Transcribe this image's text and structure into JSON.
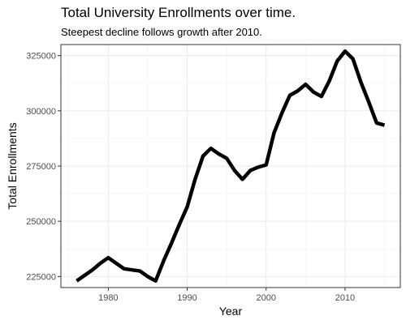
{
  "chart_data": {
    "type": "line",
    "title": "Total University Enrollments over time.",
    "subtitle": "Steepest decline follows growth after 2010.",
    "xlabel": "Year",
    "ylabel": "Total Enrollments",
    "xlim": [
      1974,
      2017
    ],
    "ylim": [
      220000,
      330000
    ],
    "x_ticks": [
      1980,
      1990,
      2000,
      2010
    ],
    "y_ticks": [
      225000,
      250000,
      275000,
      300000,
      325000
    ],
    "x_tick_labels": [
      "1980",
      "1990",
      "2000",
      "2010"
    ],
    "y_tick_labels": [
      "225000",
      "250000",
      "275000",
      "300000",
      "325000"
    ],
    "grid": true,
    "line_color": "#000000",
    "series": [
      {
        "x": [
          1976,
          1977,
          1978,
          1979,
          1980,
          1981,
          1982,
          1983,
          1984,
          1985,
          1986,
          1987,
          1988,
          1989,
          1990,
          1991,
          1992,
          1993,
          1994,
          1995,
          1996,
          1997,
          1998,
          1999,
          2000,
          2001,
          2002,
          2003,
          2004,
          2005,
          2006,
          2007,
          2008,
          2009,
          2010,
          2011,
          2012,
          2013,
          2014,
          2015
        ],
        "values": [
          223000,
          225500,
          228000,
          231000,
          233500,
          231000,
          228500,
          228000,
          227500,
          225000,
          223000,
          232000,
          240000,
          248500,
          256500,
          269000,
          279500,
          283000,
          280500,
          278500,
          273000,
          269000,
          273000,
          274500,
          275500,
          290000,
          299000,
          307000,
          309000,
          312000,
          308500,
          306500,
          313500,
          322500,
          327000,
          323500,
          313000,
          304000,
          294500,
          293500
        ]
      }
    ]
  }
}
